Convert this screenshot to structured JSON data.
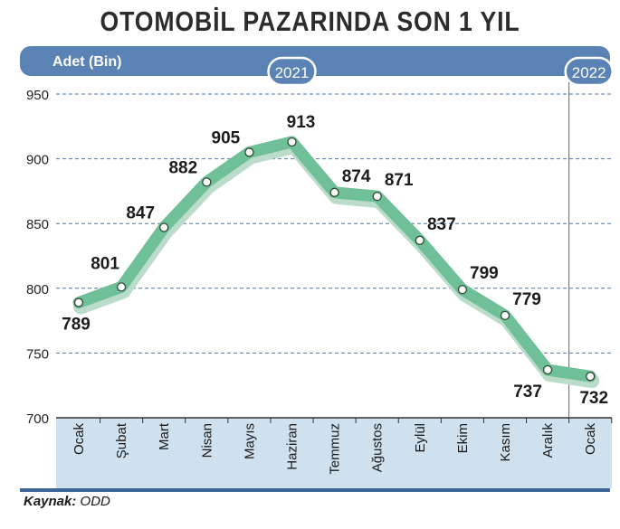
{
  "title": "OTOMOBİL PAZARINDA SON 1 YIL",
  "source": {
    "label": "Kaynak:",
    "value": "ODD"
  },
  "chart_data": {
    "type": "line",
    "title": "OTOMOBİL PAZARINDA SON 1 YIL",
    "ylabel": "Adet (Bin)",
    "xlabel": "",
    "ylim": [
      700,
      950
    ],
    "yticks": [
      700,
      750,
      800,
      850,
      900,
      950
    ],
    "grid": true,
    "year_markers": [
      {
        "label": "2021",
        "at_index": 5
      },
      {
        "label": "2022",
        "at_index": 12
      }
    ],
    "categories": [
      "Ocak",
      "Şubat",
      "Mart",
      "Nisan",
      "Mayıs",
      "Haziran",
      "Temmuz",
      "Ağustos",
      "Eylül",
      "Ekim",
      "Kasım",
      "Aralık",
      "Ocak"
    ],
    "series": [
      {
        "values": [
          789,
          801,
          847,
          882,
          905,
          913,
          874,
          871,
          837,
          799,
          779,
          737,
          732
        ]
      }
    ],
    "colors": {
      "line": "#6fbf98",
      "line_shadow": "#bcdccb",
      "banner": "#5b82b4",
      "banner_dark": "#3d6598",
      "axis_band": "#cfe0ee",
      "grid": "#4f76a8",
      "point_fill": "#ffffff",
      "point_stroke": "#2e4a30"
    }
  }
}
